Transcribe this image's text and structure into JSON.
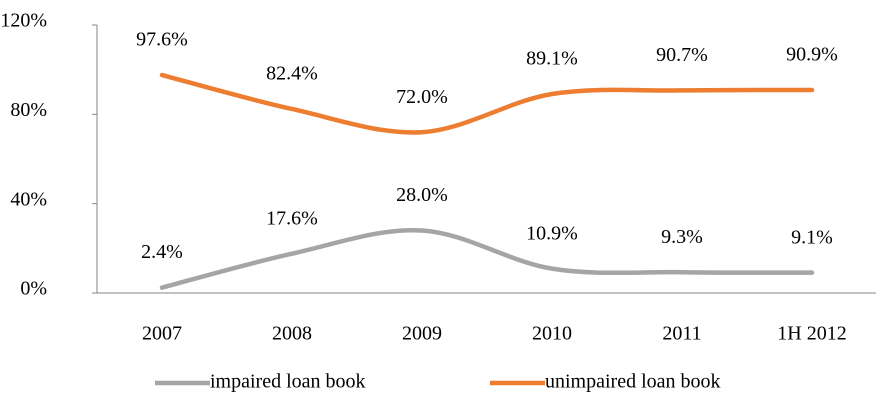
{
  "chart_data": {
    "type": "line",
    "categories": [
      "2007",
      "2008",
      "2009",
      "2010",
      "2011",
      "1H 2012"
    ],
    "series": [
      {
        "name": "impaired loan book",
        "color": "#a5a5a5",
        "values": [
          2.4,
          17.6,
          28.0,
          10.9,
          9.3,
          9.1
        ],
        "value_labels": [
          "2.4%",
          "17.6%",
          "28.0%",
          "10.9%",
          "9.3%",
          "9.1%"
        ]
      },
      {
        "name": "unimpaired loan book",
        "color": "#ed7d31",
        "values": [
          97.6,
          82.4,
          72.0,
          89.1,
          90.7,
          90.9
        ],
        "value_labels": [
          "97.6%",
          "82.4%",
          "72.0%",
          "89.1%",
          "90.7%",
          "90.9%"
        ]
      }
    ],
    "ylim": [
      0,
      120
    ],
    "yticks": [
      {
        "value": 0,
        "label": "0%"
      },
      {
        "value": 40,
        "label": "40%"
      },
      {
        "value": 80,
        "label": "80%"
      },
      {
        "value": 120,
        "label": "120%"
      }
    ],
    "smooth": true,
    "legend": "bottom"
  }
}
